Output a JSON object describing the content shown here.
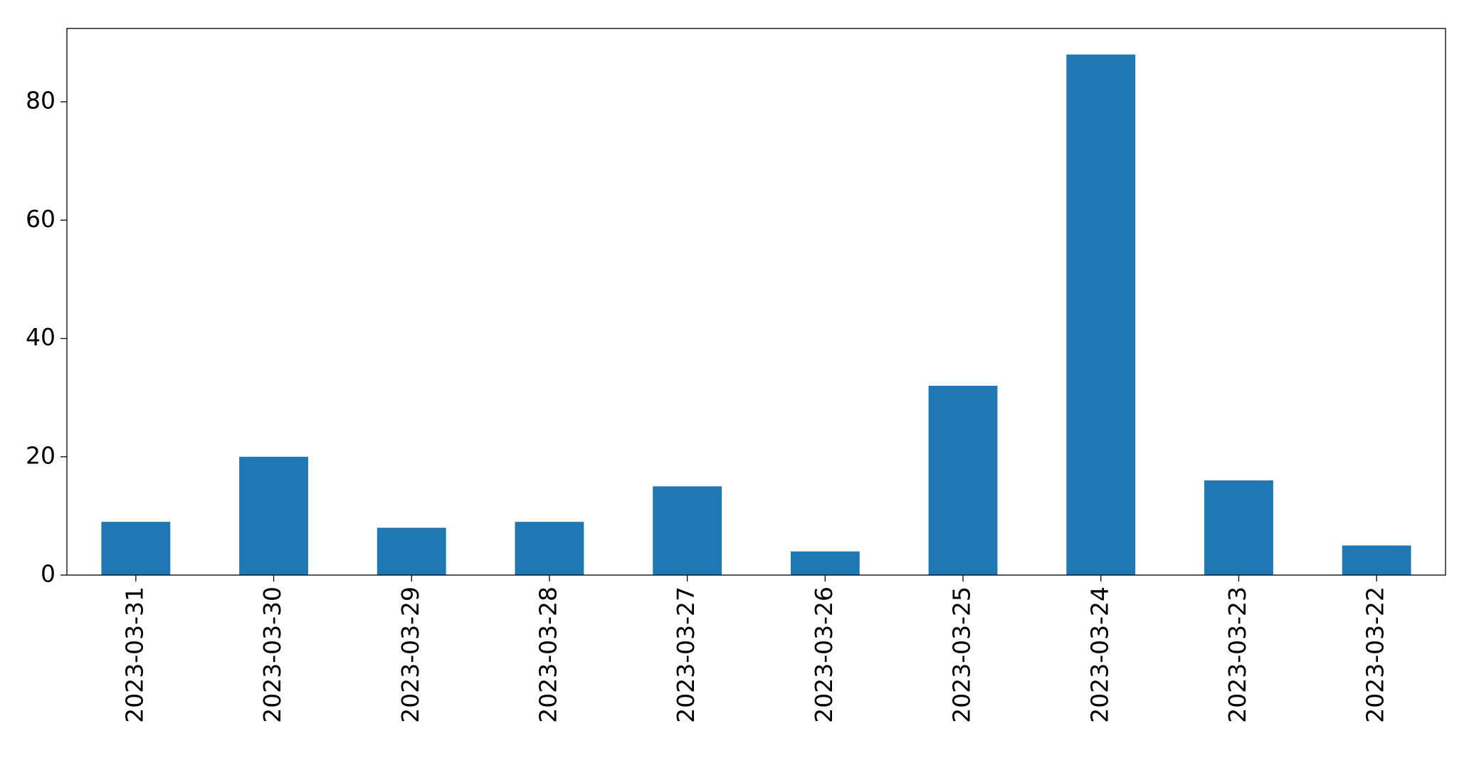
{
  "chart_data": {
    "type": "bar",
    "categories": [
      "2023-03-31",
      "2023-03-30",
      "2023-03-29",
      "2023-03-28",
      "2023-03-27",
      "2023-03-26",
      "2023-03-25",
      "2023-03-24",
      "2023-03-23",
      "2023-03-22"
    ],
    "values": [
      9,
      20,
      8,
      9,
      15,
      4,
      32,
      88,
      16,
      5
    ],
    "color": "#1f77b4",
    "ylim": [
      0,
      92.4
    ],
    "yticks": [
      0,
      20,
      40,
      60,
      80
    ],
    "grid": false
  }
}
